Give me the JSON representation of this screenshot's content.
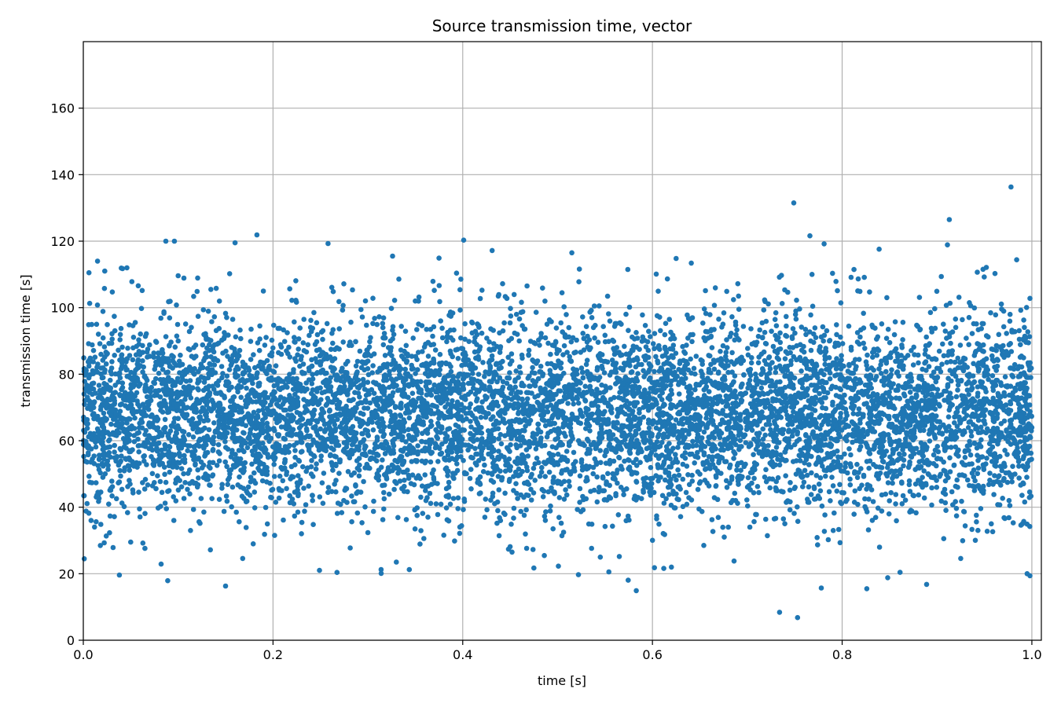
{
  "chart_data": {
    "type": "scatter",
    "title": "Source transmission time, vector",
    "xlabel": "time [s]",
    "ylabel": "transmission time [s]",
    "xlim": [
      0.0,
      1.01
    ],
    "ylim": [
      0,
      180
    ],
    "xticks": [
      0.0,
      0.2,
      0.4,
      0.6,
      0.8,
      1.0
    ],
    "xtick_labels": [
      "0.0",
      "0.2",
      "0.4",
      "0.6",
      "0.8",
      "1.0"
    ],
    "yticks": [
      0,
      20,
      40,
      60,
      80,
      100,
      120,
      140,
      160
    ],
    "ytick_labels": [
      "0",
      "20",
      "40",
      "60",
      "80",
      "100",
      "120",
      "140",
      "160"
    ],
    "grid": true,
    "marker_color": "#1f77b4",
    "series": [
      {
        "points": [
          [
            0.001,
            24.5
          ],
          [
            0.004,
            41.1
          ],
          [
            0.006,
            110.5
          ],
          [
            0.015,
            114.0
          ],
          [
            0.014,
            95.0
          ],
          [
            0.018,
            28.5
          ],
          [
            0.022,
            29.3
          ],
          [
            0.038,
            19.6
          ],
          [
            0.04,
            111.9
          ],
          [
            0.046,
            112.0
          ],
          [
            0.05,
            29.5
          ],
          [
            0.082,
            22.9
          ],
          [
            0.087,
            120.0
          ],
          [
            0.089,
            17.9
          ],
          [
            0.096,
            120.0
          ],
          [
            0.1,
            109.6
          ],
          [
            0.113,
            33.0
          ],
          [
            0.134,
            27.2
          ],
          [
            0.15,
            16.3
          ],
          [
            0.16,
            119.5
          ],
          [
            0.168,
            24.6
          ],
          [
            0.183,
            121.9
          ],
          [
            0.224,
            108.1
          ],
          [
            0.249,
            21.0
          ],
          [
            0.258,
            119.3
          ],
          [
            0.262,
            106.1
          ],
          [
            0.314,
            20.1
          ],
          [
            0.326,
            115.5
          ],
          [
            0.33,
            23.5
          ],
          [
            0.35,
            102.0
          ],
          [
            0.375,
            114.9
          ],
          [
            0.401,
            120.3
          ],
          [
            0.431,
            117.2
          ],
          [
            0.452,
            26.5
          ],
          [
            0.475,
            21.7
          ],
          [
            0.515,
            116.5
          ],
          [
            0.522,
            19.7
          ],
          [
            0.545,
            25.0
          ],
          [
            0.574,
            111.5
          ],
          [
            0.583,
            14.9
          ],
          [
            0.604,
            110.1
          ],
          [
            0.612,
            21.6
          ],
          [
            0.62,
            22.0
          ],
          [
            0.625,
            114.8
          ],
          [
            0.641,
            113.4
          ],
          [
            0.686,
            23.8
          ],
          [
            0.69,
            107.2
          ],
          [
            0.734,
            8.4
          ],
          [
            0.749,
            131.5
          ],
          [
            0.753,
            6.8
          ],
          [
            0.766,
            121.6
          ],
          [
            0.778,
            15.7
          ],
          [
            0.781,
            119.2
          ],
          [
            0.795,
            105.1
          ],
          [
            0.826,
            15.5
          ],
          [
            0.839,
            117.6
          ],
          [
            0.848,
            18.8
          ],
          [
            0.861,
            20.4
          ],
          [
            0.889,
            16.8
          ],
          [
            0.911,
            118.9
          ],
          [
            0.913,
            126.5
          ],
          [
            0.925,
            24.6
          ],
          [
            0.952,
            112.1
          ],
          [
            0.978,
            136.3
          ],
          [
            0.984,
            114.4
          ],
          [
            0.995,
            20.0
          ],
          [
            0.998,
            19.4
          ]
        ]
      }
    ]
  }
}
